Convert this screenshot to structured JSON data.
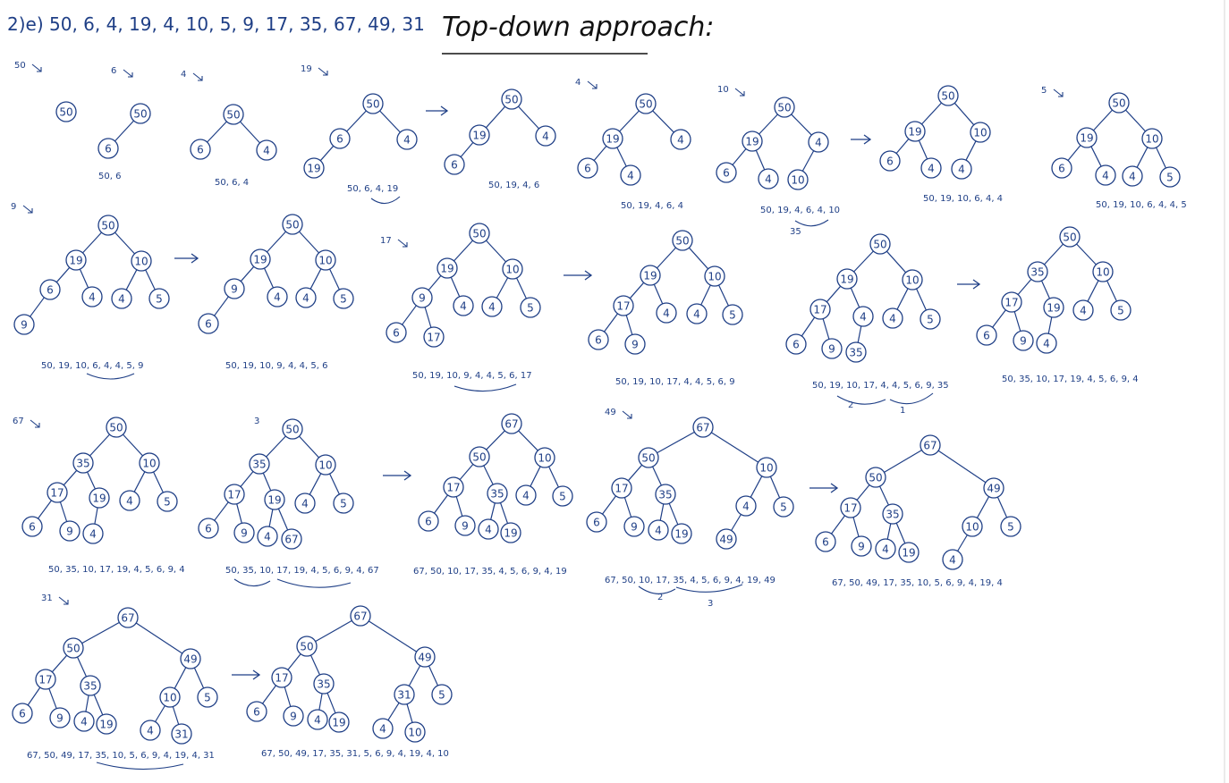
{
  "header": {
    "sequence": "2)e) 50, 6, 4, 19, 4, 10, 5, 9, 17, 35, 67, 49, 31",
    "title": "Top-down approach:"
  },
  "colors": {
    "ink": "#1f3f86",
    "title": "#111111",
    "background": "#ffffff"
  },
  "trees": [
    {
      "id": "t1",
      "step": "50",
      "nodes": [
        "50"
      ],
      "caption": ""
    },
    {
      "id": "t2",
      "step": "6",
      "nodes": [
        "50",
        "6"
      ],
      "caption": "50, 6"
    },
    {
      "id": "t3",
      "step": "4",
      "nodes": [
        "50",
        "6",
        "4"
      ],
      "caption": "50, 6, 4"
    },
    {
      "id": "t4",
      "step": "19",
      "nodes": [
        "50",
        "6",
        "4",
        "19"
      ],
      "caption": "50, 6, 4, 19"
    },
    {
      "id": "t5",
      "step": "",
      "nodes": [
        "50",
        "19",
        "4",
        "6"
      ],
      "caption": "50, 19, 4, 6"
    },
    {
      "id": "t6",
      "step": "4",
      "nodes": [
        "50",
        "19",
        "4",
        "6",
        "4"
      ],
      "caption": "50, 19, 4, 6, 4"
    },
    {
      "id": "t7",
      "step": "10",
      "nodes": [
        "50",
        "19",
        "4",
        "6",
        "4",
        "10"
      ],
      "caption": "50, 19, 4, 6, 4, 10"
    },
    {
      "id": "t8",
      "step": "",
      "nodes": [
        "50",
        "19",
        "10",
        "6",
        "4",
        "4"
      ],
      "caption": "50, 19, 10, 6, 4, 4"
    },
    {
      "id": "t9",
      "step": "5",
      "nodes": [
        "50",
        "19",
        "10",
        "6",
        "4",
        "4",
        "5"
      ],
      "caption": "50, 19, 10, 6, 4, 4, 5"
    },
    {
      "id": "t10",
      "step": "9",
      "nodes": [
        "50",
        "19",
        "10",
        "6",
        "4",
        "4",
        "5",
        "9"
      ],
      "caption": "50, 19, 10, 6, 4, 4, 5, 9"
    },
    {
      "id": "t11",
      "step": "",
      "nodes": [
        "50",
        "19",
        "10",
        "9",
        "4",
        "4",
        "5",
        "6"
      ],
      "caption": "50, 19, 10, 9, 4, 4, 5, 6"
    },
    {
      "id": "t12",
      "step": "17",
      "nodes": [
        "50",
        "19",
        "10",
        "9",
        "4",
        "4",
        "5",
        "6",
        "17"
      ],
      "caption": "50, 19, 10, 9, 4, 4, 5, 6, 17"
    },
    {
      "id": "t13",
      "step": "",
      "nodes": [
        "50",
        "19",
        "10",
        "17",
        "4",
        "4",
        "5",
        "6",
        "9"
      ],
      "caption": "50, 19, 10, 17, 4, 4, 5, 6, 9"
    },
    {
      "id": "t14",
      "step": "",
      "nodes": [
        "50",
        "19",
        "10",
        "17",
        "4",
        "4",
        "5",
        "6",
        "9",
        "35"
      ],
      "caption": "50, 19, 10, 17, 4, 4, 5, 6, 9, 35"
    },
    {
      "id": "t15",
      "step": "",
      "nodes": [
        "50",
        "35",
        "10",
        "17",
        "19",
        "4",
        "5",
        "6",
        "9",
        "4"
      ],
      "caption": "50, 35, 10, 17, 19, 4, 5, 6, 9, 4"
    },
    {
      "id": "t16",
      "step": "67",
      "nodes": [
        "50",
        "35",
        "10",
        "17",
        "19",
        "4",
        "5",
        "6",
        "9",
        "4"
      ],
      "caption": "50, 35, 10, 17, 19, 4, 5, 6, 9, 4"
    },
    {
      "id": "t17",
      "step": "",
      "nodes": [
        "50",
        "35",
        "10",
        "17",
        "19",
        "4",
        "5",
        "6",
        "9",
        "4",
        "67"
      ],
      "caption": "50, 35, 10, 17, 19, 4, 5, 6, 9, 4, 67"
    },
    {
      "id": "t18",
      "step": "",
      "nodes": [
        "67",
        "50",
        "10",
        "17",
        "35",
        "4",
        "5",
        "6",
        "9",
        "4",
        "19"
      ],
      "caption": "67, 50, 10, 17, 35, 4, 5, 6, 9, 4, 19"
    },
    {
      "id": "t19",
      "step": "49",
      "nodes": [
        "67",
        "50",
        "10",
        "17",
        "35",
        "4",
        "5",
        "6",
        "9",
        "4",
        "19",
        "49"
      ],
      "caption": "67, 50, 10, 17, 35, 4, 5, 6, 9, 4, 19, 49"
    },
    {
      "id": "t20",
      "step": "",
      "nodes": [
        "67",
        "50",
        "49",
        "17",
        "35",
        "10",
        "5",
        "6",
        "9",
        "4",
        "19",
        "4"
      ],
      "caption": "67, 50, 49, 17, 35, 10, 5, 6, 9, 4, 19, 4"
    },
    {
      "id": "t21",
      "step": "31",
      "nodes": [
        "67",
        "50",
        "49",
        "17",
        "35",
        "10",
        "5",
        "6",
        "9",
        "4",
        "19",
        "4",
        "31"
      ],
      "caption": "67, 50, 49, 17, 35, 10, 5, 6, 9, 4, 19, 4, 31"
    },
    {
      "id": "t22",
      "step": "",
      "nodes": [
        "67",
        "50",
        "49",
        "17",
        "35",
        "31",
        "5",
        "6",
        "9",
        "4",
        "19",
        "4",
        "10"
      ],
      "caption": "67, 50, 49, 17, 35, 31, 5, 6, 9, 4, 19, 4, 10"
    }
  ],
  "swap_notes": [
    "35",
    "3",
    "2",
    "1"
  ]
}
